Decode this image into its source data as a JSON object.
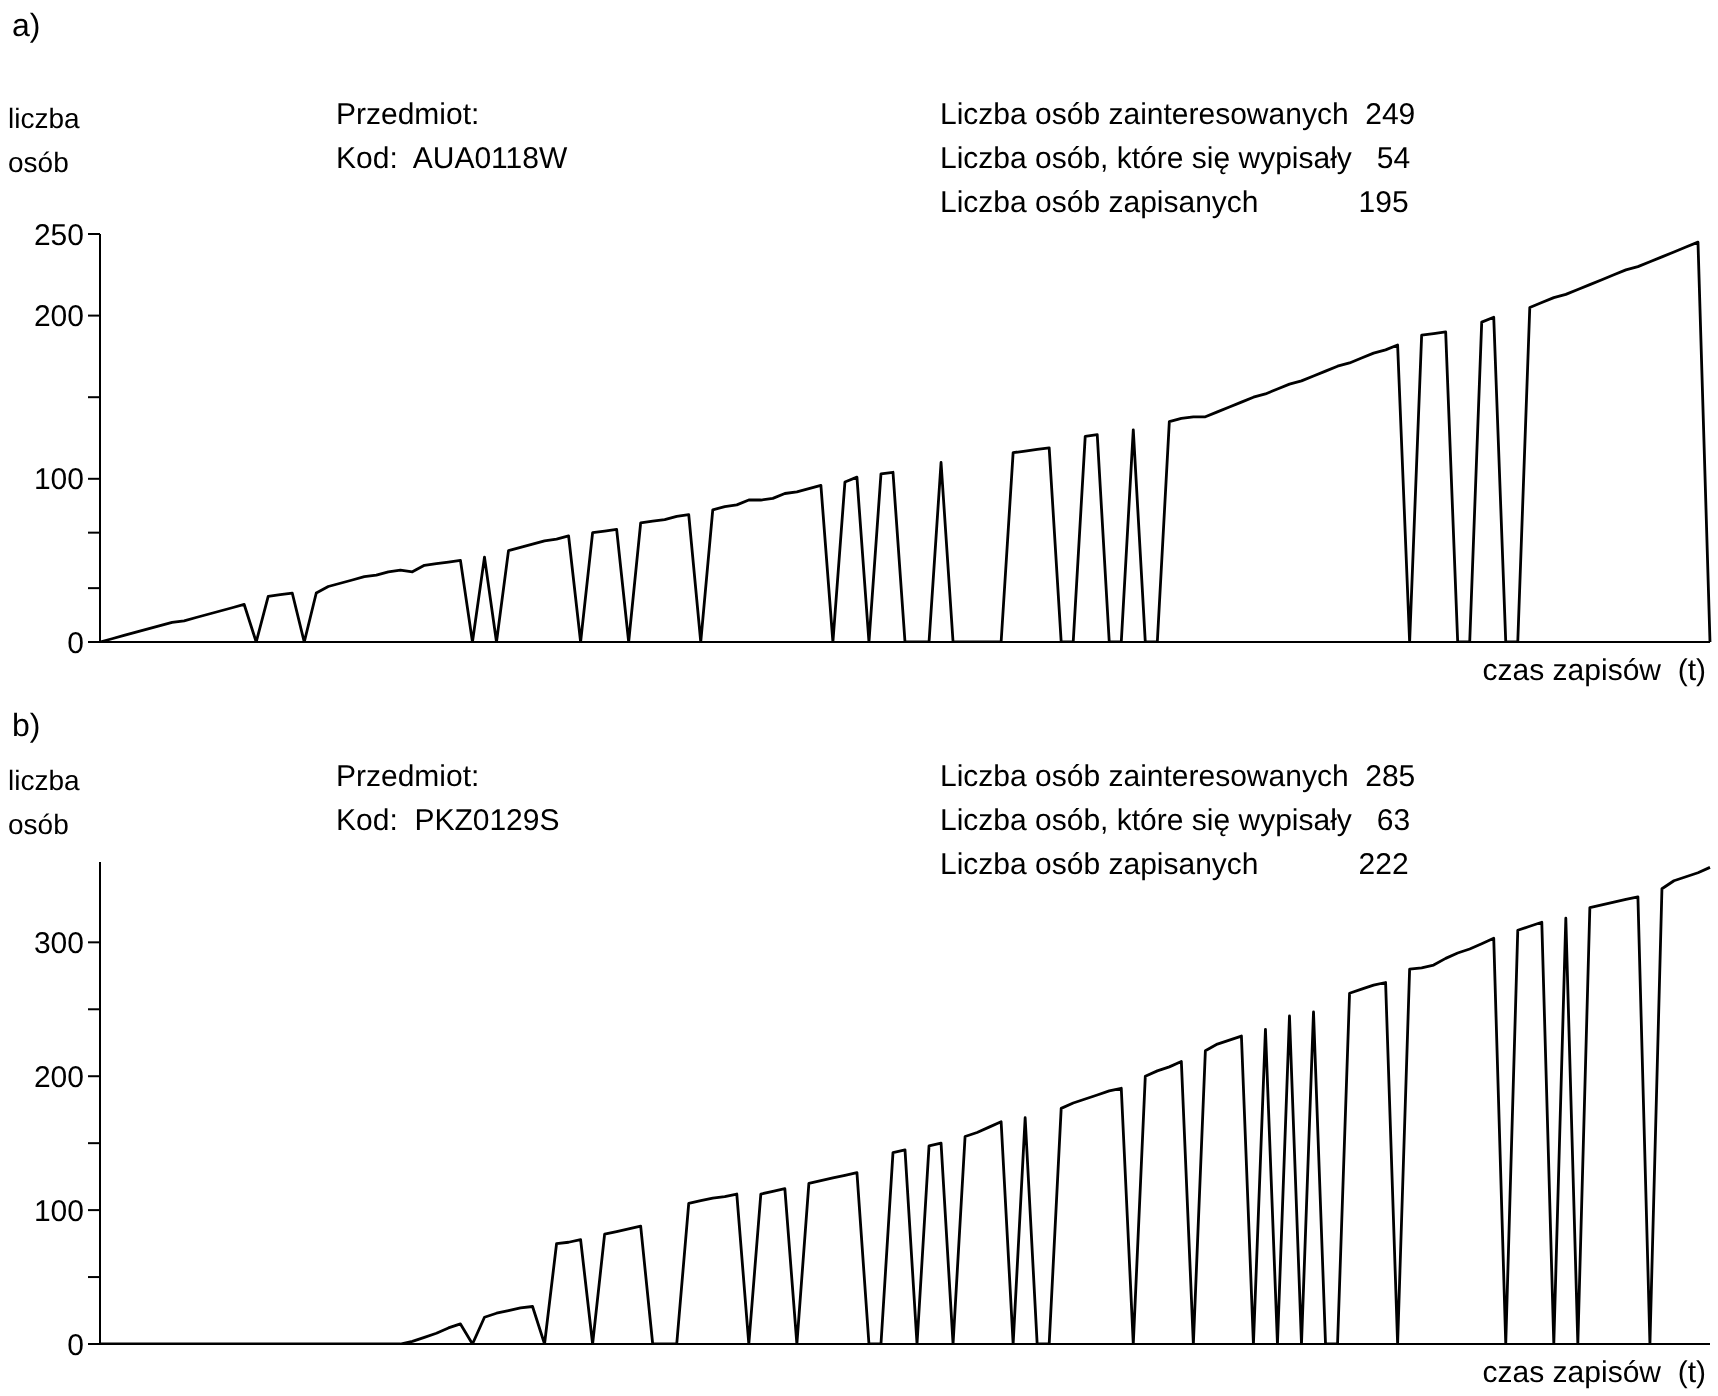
{
  "chart_data": [
    {
      "type": "line",
      "title": "a)",
      "ylabel": "liczba osób",
      "xlabel": "czas zapisów  (t)",
      "annotations": [
        "Przedmiot:",
        "Kod:  AUA0118W",
        "Liczba osób zainteresowanych  249",
        "Liczba osób, które się wypisały   54",
        "Liczba osób zapisanych            195"
      ],
      "categories": [
        null,
        null,
        null,
        null,
        null,
        null,
        null,
        null,
        null,
        null,
        null,
        null,
        null,
        null,
        null,
        null,
        null,
        null,
        null,
        null,
        null,
        null,
        null,
        null,
        null,
        null,
        null,
        null,
        null,
        null,
        null,
        null,
        null,
        null,
        null,
        null,
        null,
        null,
        null,
        null,
        null,
        null,
        null,
        null,
        null,
        null,
        null,
        null,
        null,
        null,
        null,
        null,
        null,
        null,
        null,
        null,
        null,
        null,
        null,
        null,
        null,
        null,
        null,
        null,
        null,
        null,
        null,
        null,
        null,
        null,
        null,
        null,
        null,
        null,
        null,
        null,
        null,
        null,
        null,
        null,
        null,
        null,
        null,
        null,
        null,
        null,
        null,
        null,
        null,
        null,
        null,
        null,
        null,
        null,
        null,
        null,
        null,
        null,
        null,
        null,
        null,
        null,
        null,
        null,
        null,
        null,
        null,
        null,
        null,
        null,
        null,
        null,
        null,
        null,
        null,
        null,
        null,
        null,
        null,
        null,
        null,
        null,
        null,
        null,
        null,
        null,
        null,
        null,
        null,
        null,
        null,
        null,
        null,
        null,
        null
      ],
      "series": [
        {
          "color": "#000000",
          "values": [
            0,
            2,
            4,
            6,
            8,
            10,
            12,
            13,
            15,
            17,
            19,
            21,
            23,
            0,
            28,
            29,
            30,
            0,
            30,
            34,
            36,
            38,
            40,
            41,
            43,
            44,
            43,
            47,
            48,
            49,
            50,
            0,
            52,
            0,
            56,
            58,
            60,
            62,
            63,
            65,
            0,
            67,
            68,
            69,
            0,
            73,
            74,
            75,
            77,
            78,
            0,
            81,
            83,
            84,
            87,
            87,
            88,
            91,
            92,
            94,
            96,
            0,
            98,
            101,
            0,
            103,
            104,
            0,
            0,
            0,
            110,
            0,
            0,
            0,
            0,
            0,
            116,
            117,
            118,
            119,
            0,
            0,
            126,
            127,
            0,
            0,
            130,
            0,
            0,
            135,
            137,
            138,
            138,
            141,
            144,
            147,
            150,
            152,
            155,
            158,
            160,
            163,
            166,
            169,
            171,
            174,
            177,
            179,
            182,
            0,
            188,
            189,
            190,
            0,
            0,
            196,
            199,
            0,
            0,
            205,
            208,
            211,
            213,
            216,
            219,
            222,
            225,
            228,
            230,
            233,
            236,
            239,
            242,
            245,
            0
          ]
        }
      ],
      "ylim": [
        0,
        250
      ],
      "yticks": [
        0,
        {
          "value": 33,
          "label": null
        },
        {
          "value": 67,
          "label": null
        },
        100,
        {
          "value": 150,
          "label": null
        },
        200,
        250
      ],
      "tick_labels": "y"
    },
    {
      "type": "line",
      "title": "b)",
      "ylabel": "liczba osób",
      "xlabel": "czas zapisów  (t)",
      "annotations": [
        "Przedmiot:",
        "Kod:  PKZ0129S",
        "Liczba osób zainteresowanych  285",
        "Liczba osób, które się wypisały   63",
        "Liczba osób zapisanych            222"
      ],
      "categories": [
        null,
        null,
        null,
        null,
        null,
        null,
        null,
        null,
        null,
        null,
        null,
        null,
        null,
        null,
        null,
        null,
        null,
        null,
        null,
        null,
        null,
        null,
        null,
        null,
        null,
        null,
        null,
        null,
        null,
        null,
        null,
        null,
        null,
        null,
        null,
        null,
        null,
        null,
        null,
        null,
        null,
        null,
        null,
        null,
        null,
        null,
        null,
        null,
        null,
        null,
        null,
        null,
        null,
        null,
        null,
        null,
        null,
        null,
        null,
        null,
        null,
        null,
        null,
        null,
        null,
        null,
        null,
        null,
        null,
        null,
        null,
        null,
        null,
        null,
        null,
        null,
        null,
        null,
        null,
        null,
        null,
        null,
        null,
        null,
        null,
        null,
        null,
        null,
        null,
        null,
        null,
        null,
        null,
        null,
        null,
        null,
        null,
        null,
        null,
        null,
        null,
        null,
        null,
        null,
        null,
        null,
        null,
        null,
        null,
        null,
        null,
        null,
        null,
        null,
        null,
        null,
        null,
        null,
        null,
        null,
        null,
        null,
        null,
        null,
        null,
        null,
        null,
        null,
        null,
        null,
        null,
        null,
        null,
        null,
        null
      ],
      "series": [
        {
          "color": "#000000",
          "values": [
            0,
            0,
            0,
            0,
            0,
            0,
            0,
            0,
            0,
            0,
            0,
            0,
            0,
            0,
            0,
            0,
            0,
            0,
            0,
            0,
            0,
            0,
            0,
            0,
            0,
            0,
            2,
            5,
            8,
            12,
            15,
            0,
            20,
            23,
            25,
            27,
            28,
            0,
            75,
            76,
            78,
            0,
            82,
            84,
            86,
            88,
            0,
            0,
            0,
            105,
            107,
            109,
            110,
            112,
            0,
            112,
            114,
            116,
            0,
            120,
            122,
            124,
            126,
            128,
            0,
            0,
            143,
            145,
            0,
            148,
            150,
            0,
            155,
            158,
            162,
            166,
            0,
            169,
            0,
            0,
            176,
            180,
            183,
            186,
            189,
            191,
            0,
            200,
            204,
            207,
            211,
            0,
            219,
            224,
            227,
            230,
            0,
            235,
            0,
            245,
            0,
            248,
            0,
            0,
            262,
            265,
            268,
            270,
            0,
            280,
            281,
            283,
            288,
            292,
            295,
            299,
            303,
            0,
            309,
            312,
            315,
            0,
            318,
            0,
            326,
            328,
            330,
            332,
            334,
            0,
            340,
            346,
            349,
            352,
            356
          ]
        }
      ],
      "ylim": [
        0,
        360
      ],
      "yticks": [
        0,
        {
          "value": 50,
          "label": null
        },
        100,
        {
          "value": 150,
          "label": null
        },
        200,
        {
          "value": 250,
          "label": null
        },
        300
      ],
      "tick_labels": "y"
    }
  ]
}
